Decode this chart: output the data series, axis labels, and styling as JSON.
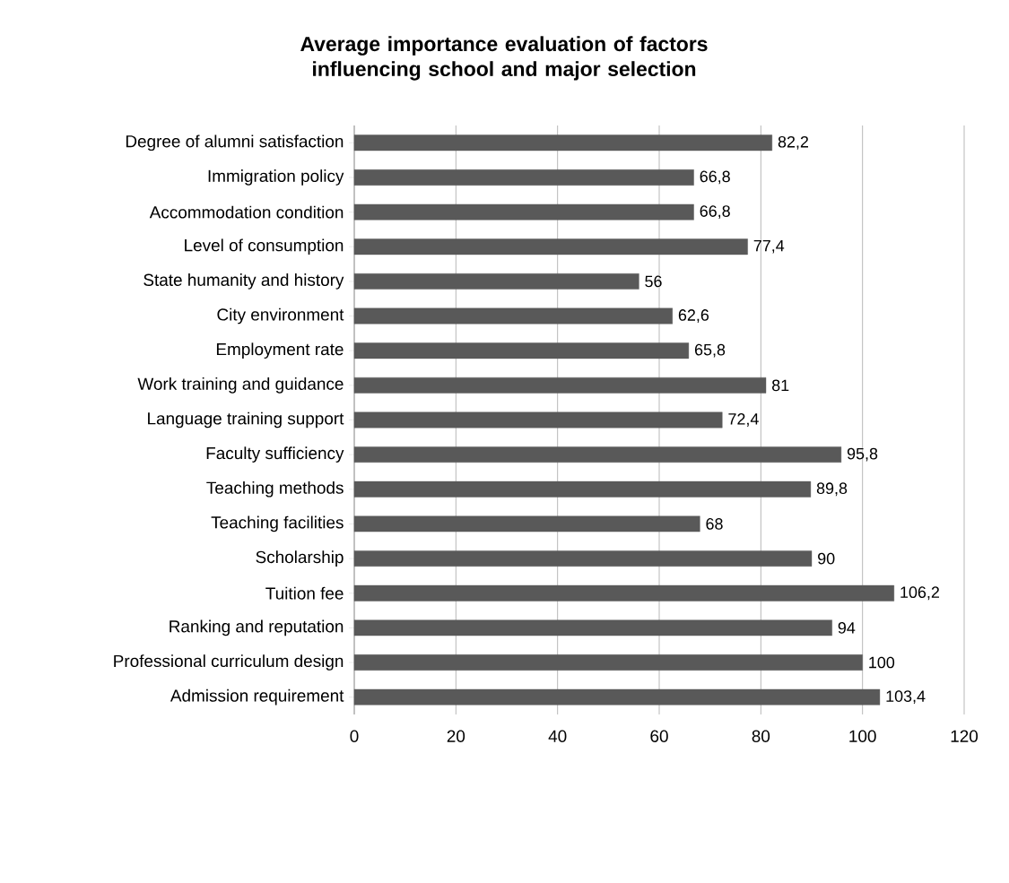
{
  "chart_data": {
    "type": "bar",
    "orientation": "horizontal",
    "title": "Average importance evaluation of factors influencing school and major selection",
    "categories": [
      "Degree of alumni satisfaction",
      "Immigration policy",
      "Accommodation condition",
      "Level of consumption",
      "State humanity and history",
      "City environment",
      "Employment rate",
      "Work training and guidance",
      "Language training support",
      "Faculty sufficiency",
      "Teaching methods",
      "Teaching facilities",
      "Scholarship",
      "Tuition fee",
      "Ranking and reputation",
      "Professional curriculum design",
      "Admission requirement"
    ],
    "values": [
      82.2,
      66.8,
      66.8,
      77.4,
      56,
      62.6,
      65.8,
      81,
      72.4,
      95.8,
      89.8,
      68,
      90,
      106.2,
      94,
      100,
      103.4
    ],
    "value_labels": [
      "82,2",
      "66,8",
      "66,8",
      "77,4",
      "56",
      "62,6",
      "65,8",
      "81",
      "72,4",
      "95,8",
      "89,8",
      "68",
      "90",
      "106,2",
      "94",
      "100",
      "103,4"
    ],
    "color": "#595959",
    "xlim": [
      0,
      120
    ],
    "xticks": [
      0,
      20,
      40,
      60,
      80,
      100,
      120
    ],
    "grid": "x"
  }
}
